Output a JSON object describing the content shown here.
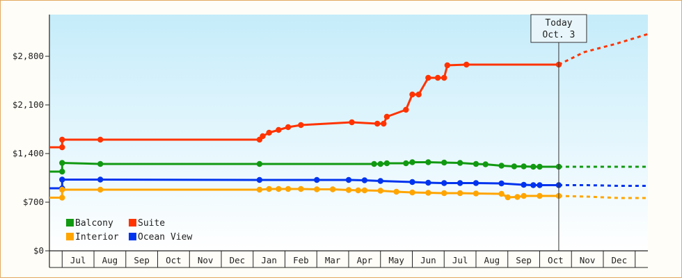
{
  "chart_data": {
    "type": "line",
    "title": "",
    "xlabel": "",
    "ylabel": "",
    "ylim": [
      0,
      3400
    ],
    "y_ticks": [
      {
        "value": 0,
        "label": "$0"
      },
      {
        "value": 700,
        "label": "$700"
      },
      {
        "value": 1400,
        "label": "$1,400"
      },
      {
        "value": 2100,
        "label": "$2,100"
      },
      {
        "value": 2800,
        "label": "$2,800"
      }
    ],
    "x_month_labels": [
      "Jul",
      "Aug",
      "Sep",
      "Oct",
      "Nov",
      "Dec",
      "Jan",
      "Feb",
      "Mar",
      "Apr",
      "May",
      "Jun",
      "Jul",
      "Aug",
      "Sep",
      "Oct",
      "Nov",
      "Dec"
    ],
    "x_domain": [
      -0.4,
      18.4
    ],
    "today": {
      "x": 15.6,
      "line1": "Today",
      "line2": "Oct. 3"
    },
    "grid": false,
    "background_gradient": [
      "#c5ecfa",
      "#ffffff"
    ],
    "legend": {
      "placement": "bottom-left",
      "entries": [
        {
          "label": "Balcony",
          "color": "#119911"
        },
        {
          "label": "Suite",
          "color": "#ff3300"
        },
        {
          "label": "Interior",
          "color": "#ffa500"
        },
        {
          "label": "Ocean View",
          "color": "#0033ee"
        }
      ]
    },
    "series": [
      {
        "name": "Suite",
        "color": "#ff3300",
        "points": [
          [
            -0.4,
            1490
          ],
          [
            0,
            1490
          ],
          [
            0,
            1600
          ],
          [
            1.2,
            1600
          ],
          [
            6.2,
            1600
          ],
          [
            6.3,
            1650
          ],
          [
            6.5,
            1700
          ],
          [
            6.8,
            1740
          ],
          [
            7.1,
            1780
          ],
          [
            7.5,
            1810
          ],
          [
            9.1,
            1850
          ],
          [
            9.9,
            1830
          ],
          [
            10.1,
            1830
          ],
          [
            10.2,
            1930
          ],
          [
            10.8,
            2030
          ],
          [
            11.0,
            2250
          ],
          [
            11.2,
            2250
          ],
          [
            11.5,
            2490
          ],
          [
            11.8,
            2490
          ],
          [
            12.0,
            2490
          ],
          [
            12.1,
            2670
          ],
          [
            12.7,
            2680
          ],
          [
            15.6,
            2680
          ]
        ],
        "projection": [
          [
            15.6,
            2680
          ],
          [
            16.4,
            2860
          ],
          [
            17.4,
            2980
          ],
          [
            18.4,
            3120
          ]
        ]
      },
      {
        "name": "Balcony",
        "color": "#119911",
        "points": [
          [
            -0.4,
            1140
          ],
          [
            0,
            1140
          ],
          [
            0,
            1265
          ],
          [
            1.2,
            1250
          ],
          [
            6.2,
            1250
          ],
          [
            9.8,
            1250
          ],
          [
            10.0,
            1250
          ],
          [
            10.2,
            1260
          ],
          [
            10.8,
            1260
          ],
          [
            11.0,
            1275
          ],
          [
            11.5,
            1275
          ],
          [
            12.0,
            1270
          ],
          [
            12.5,
            1265
          ],
          [
            13.0,
            1250
          ],
          [
            13.3,
            1245
          ],
          [
            13.8,
            1225
          ],
          [
            14.2,
            1215
          ],
          [
            14.5,
            1215
          ],
          [
            14.8,
            1210
          ],
          [
            15.0,
            1210
          ],
          [
            15.6,
            1210
          ]
        ],
        "projection": [
          [
            15.6,
            1210
          ],
          [
            16.5,
            1210
          ],
          [
            17.5,
            1210
          ],
          [
            18.4,
            1210
          ]
        ]
      },
      {
        "name": "Ocean View",
        "color": "#0033ee",
        "points": [
          [
            -0.4,
            900
          ],
          [
            0,
            900
          ],
          [
            0,
            1025
          ],
          [
            1.2,
            1025
          ],
          [
            6.2,
            1020
          ],
          [
            8.0,
            1020
          ],
          [
            9.0,
            1020
          ],
          [
            9.5,
            1015
          ],
          [
            10.0,
            1005
          ],
          [
            11.0,
            990
          ],
          [
            11.5,
            980
          ],
          [
            12.0,
            975
          ],
          [
            12.5,
            975
          ],
          [
            13.0,
            975
          ],
          [
            13.8,
            970
          ],
          [
            14.5,
            950
          ],
          [
            14.8,
            945
          ],
          [
            15.0,
            945
          ],
          [
            15.6,
            945
          ]
        ],
        "projection": [
          [
            15.6,
            945
          ],
          [
            16.5,
            945
          ],
          [
            17.5,
            935
          ],
          [
            18.4,
            935
          ]
        ]
      },
      {
        "name": "Interior",
        "color": "#ffa500",
        "points": [
          [
            -0.4,
            765
          ],
          [
            0,
            765
          ],
          [
            0,
            880
          ],
          [
            1.2,
            880
          ],
          [
            6.2,
            880
          ],
          [
            6.5,
            890
          ],
          [
            6.8,
            890
          ],
          [
            7.1,
            890
          ],
          [
            7.5,
            890
          ],
          [
            8.0,
            885
          ],
          [
            8.5,
            885
          ],
          [
            9.0,
            875
          ],
          [
            9.3,
            870
          ],
          [
            9.5,
            870
          ],
          [
            10.0,
            865
          ],
          [
            10.5,
            850
          ],
          [
            11.0,
            840
          ],
          [
            11.5,
            835
          ],
          [
            12.0,
            830
          ],
          [
            12.5,
            830
          ],
          [
            13.0,
            825
          ],
          [
            13.8,
            820
          ],
          [
            14.0,
            770
          ],
          [
            14.3,
            775
          ],
          [
            14.5,
            790
          ],
          [
            15.0,
            790
          ],
          [
            15.6,
            790
          ]
        ],
        "projection": [
          [
            15.6,
            790
          ],
          [
            16.5,
            780
          ],
          [
            17.5,
            760
          ],
          [
            18.4,
            760
          ]
        ]
      }
    ]
  }
}
